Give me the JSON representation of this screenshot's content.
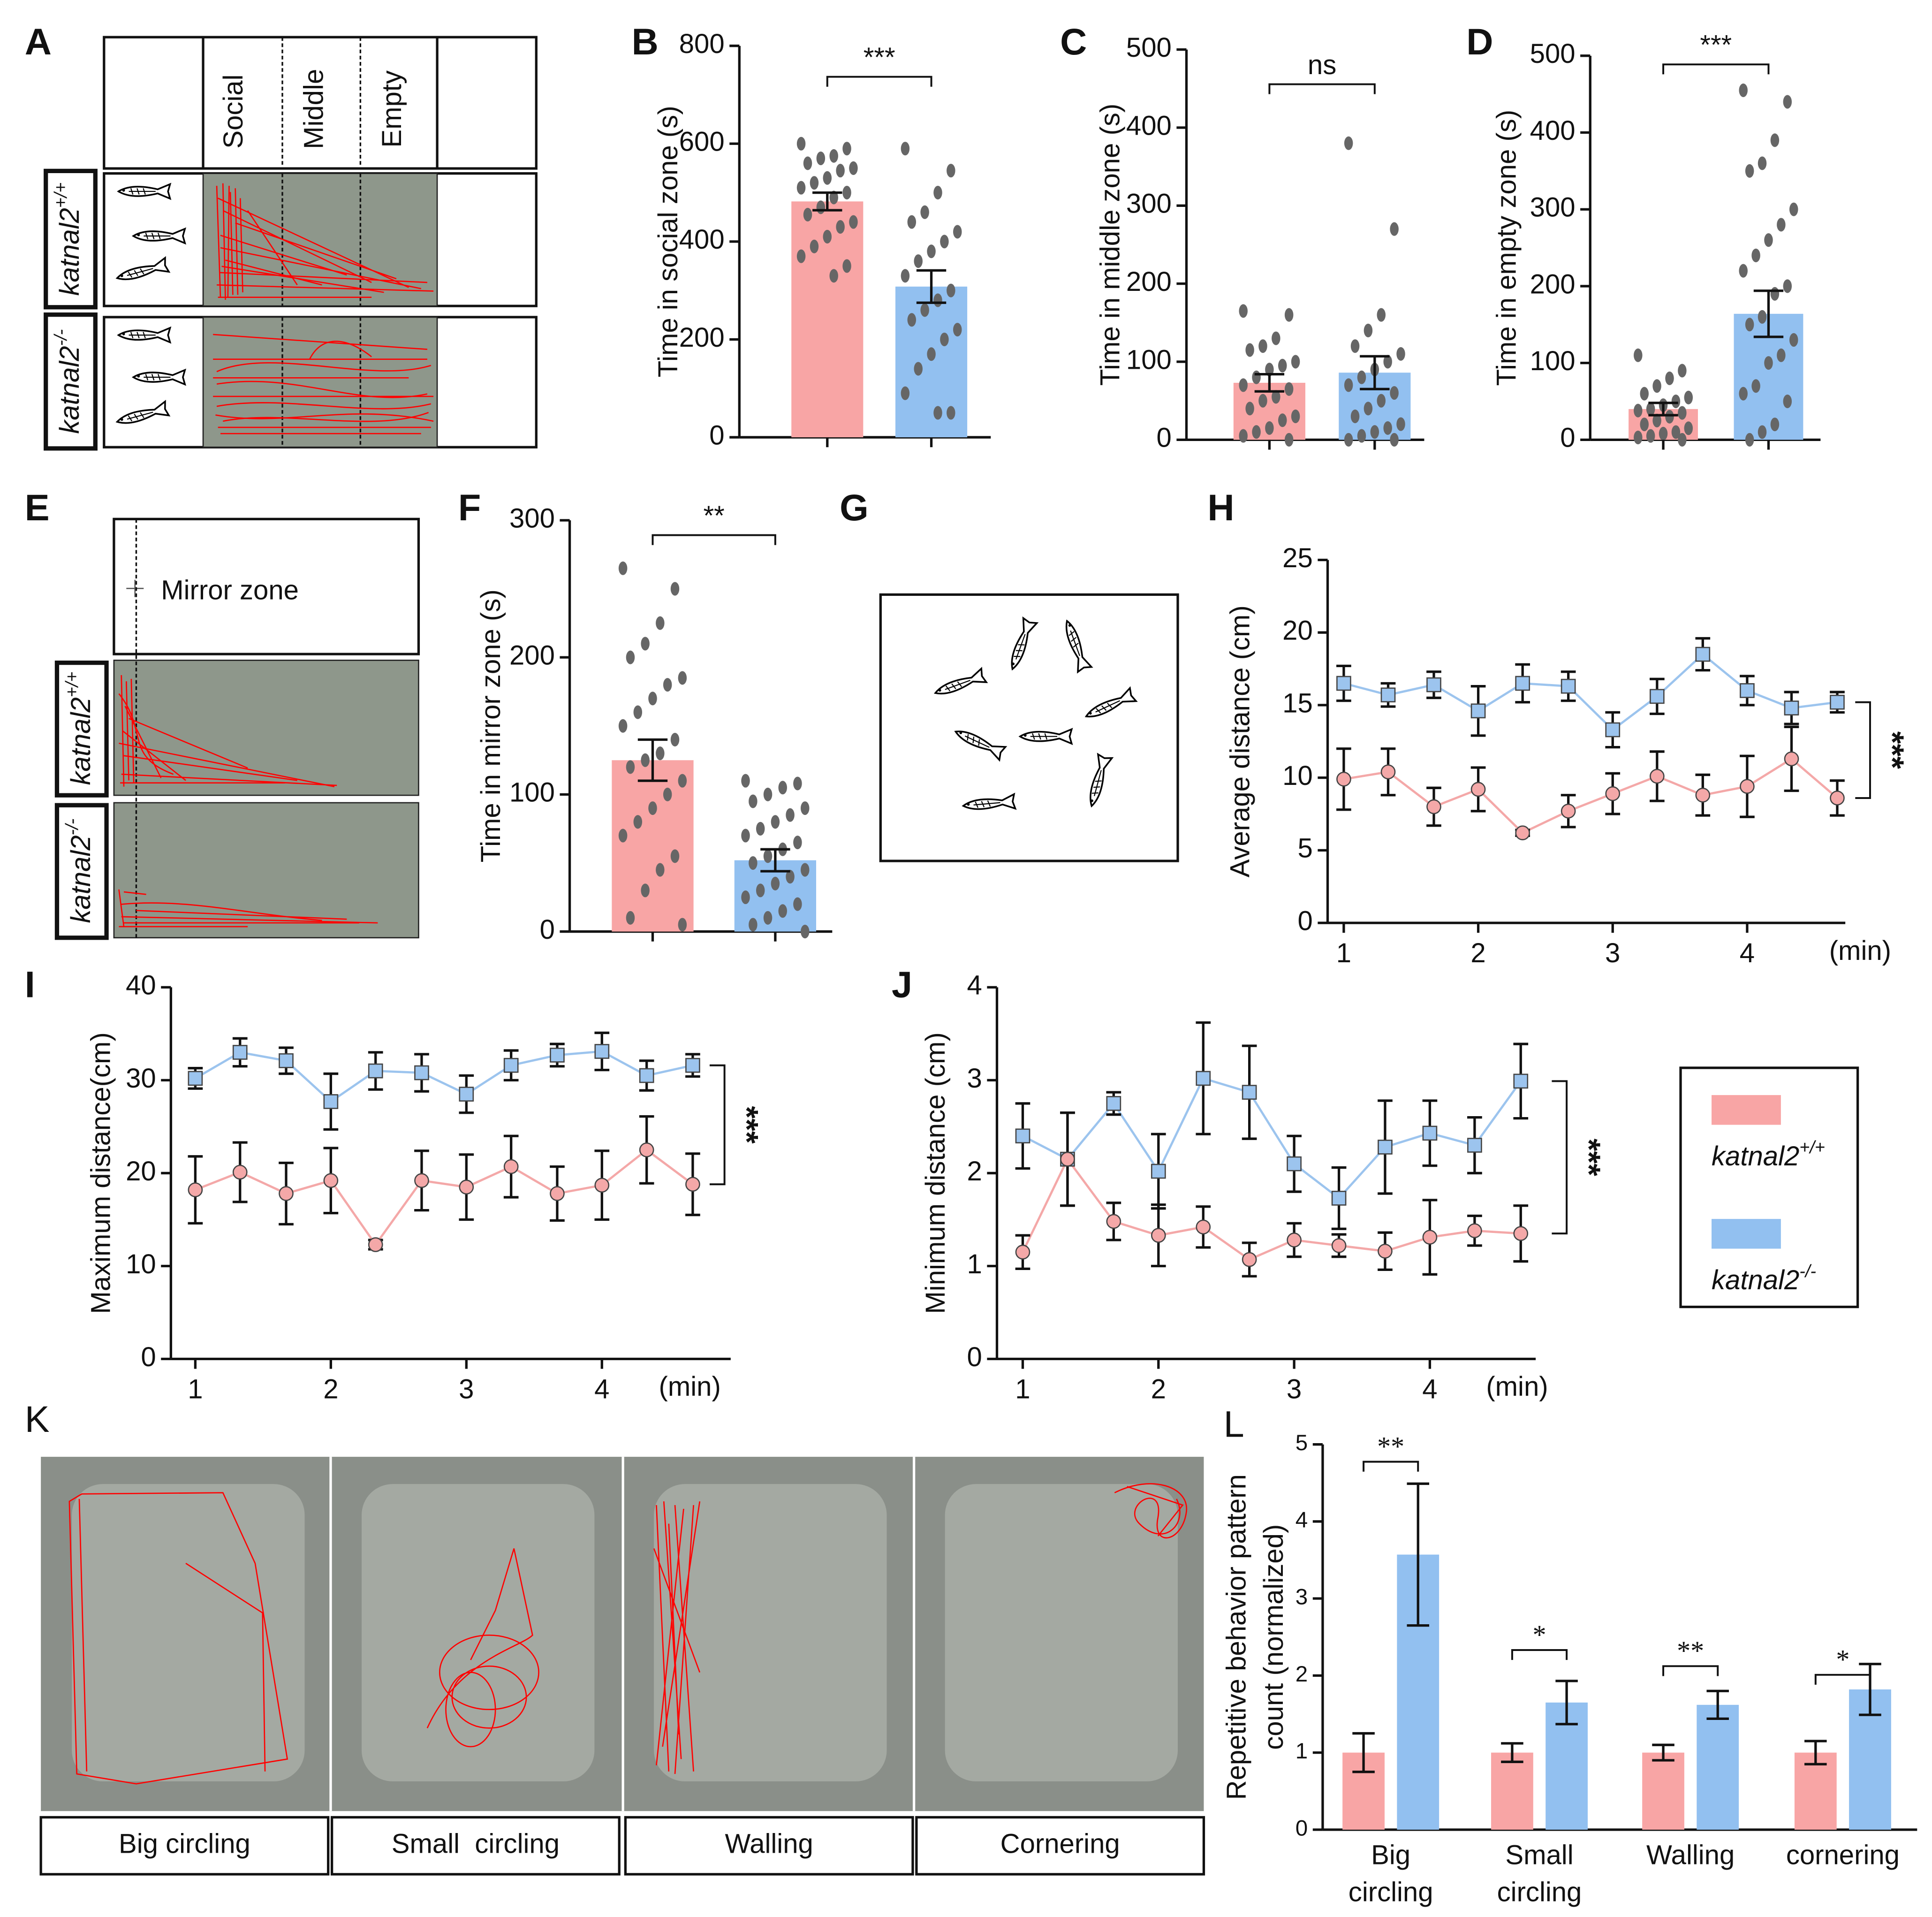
{
  "panel_labels": [
    "A",
    "B",
    "C",
    "D",
    "E",
    "F",
    "G",
    "H",
    "I",
    "J",
    "K",
    "L"
  ],
  "panel_a": {
    "zones": [
      "Social",
      "Middle",
      "Empty"
    ],
    "genotypes": [
      "katnal2+/+",
      "katnal2-/-"
    ]
  },
  "panel_e": {
    "zone": "Mirror zone",
    "genotypes": [
      "katnal2+/+",
      "katnal2-/-"
    ]
  },
  "panel_k": {
    "patterns": [
      "Big circling",
      "Small  circling",
      "Walling",
      "Cornering"
    ]
  },
  "chart_data": [
    {
      "type": "bar",
      "ylabel": "Time in social zone (s)",
      "ylim": [
        0,
        800
      ],
      "yticks": [
        0,
        200,
        400,
        600,
        800
      ],
      "values": [
        482,
        308
      ],
      "errors": [
        18,
        33
      ],
      "colors": [
        "#f8a5a5",
        "#92c0f0"
      ],
      "annotation": "***",
      "points": [
        [
          600,
          590,
          575,
          570,
          560,
          550,
          545,
          530,
          520,
          510,
          500,
          490,
          470,
          455,
          440,
          430,
          410,
          390,
          370,
          350,
          330
        ],
        [
          590,
          545,
          500,
          460,
          440,
          420,
          400,
          380,
          360,
          330,
          300,
          280,
          260,
          240,
          220,
          200,
          170,
          140,
          90,
          50,
          50
        ]
      ]
    },
    {
      "type": "bar",
      "ylabel": "Time in middle zone (s)",
      "ylim": [
        0,
        500
      ],
      "yticks": [
        0,
        100,
        200,
        300,
        400,
        500
      ],
      "values": [
        73,
        86
      ],
      "errors": [
        11,
        21
      ],
      "colors": [
        "#f8a5a5",
        "#92c0f0"
      ],
      "annotation": "ns",
      "points": [
        [
          165,
          160,
          130,
          120,
          115,
          100,
          95,
          90,
          80,
          70,
          65,
          55,
          50,
          40,
          30,
          25,
          15,
          10,
          5,
          0
        ],
        [
          380,
          270,
          160,
          140,
          120,
          110,
          100,
          90,
          80,
          70,
          60,
          50,
          40,
          30,
          20,
          15,
          10,
          5,
          0,
          0
        ]
      ]
    },
    {
      "type": "bar",
      "ylabel": "Time in empty zone (s)",
      "ylim": [
        0,
        500
      ],
      "yticks": [
        0,
        100,
        200,
        300,
        400,
        500
      ],
      "values": [
        40,
        164
      ],
      "errors": [
        8,
        30
      ],
      "colors": [
        "#f8a5a5",
        "#92c0f0"
      ],
      "annotation": "***",
      "points": [
        [
          110,
          90,
          80,
          70,
          60,
          55,
          50,
          45,
          40,
          38,
          35,
          30,
          25,
          20,
          15,
          10,
          8,
          5,
          3,
          0
        ],
        [
          455,
          440,
          390,
          360,
          350,
          300,
          280,
          260,
          240,
          220,
          200,
          190,
          160,
          150,
          130,
          110,
          100,
          70,
          60,
          50,
          20,
          10,
          0
        ]
      ]
    },
    {
      "type": "bar",
      "ylabel": "Time in mirror zone (s)",
      "ylim": [
        0,
        300
      ],
      "yticks": [
        0,
        100,
        200,
        300
      ],
      "values": [
        125,
        52
      ],
      "errors": [
        15,
        8
      ],
      "colors": [
        "#f8a5a5",
        "#92c0f0"
      ],
      "annotation": "**",
      "points": [
        [
          265,
          250,
          225,
          210,
          200,
          185,
          180,
          170,
          160,
          150,
          140,
          130,
          125,
          120,
          110,
          100,
          90,
          80,
          70,
          55,
          45,
          30,
          10,
          5
        ],
        [
          110,
          108,
          105,
          100,
          95,
          90,
          85,
          80,
          75,
          70,
          65,
          60,
          55,
          50,
          45,
          40,
          35,
          30,
          25,
          20,
          15,
          10,
          5,
          0
        ]
      ]
    },
    {
      "type": "line",
      "ylabel": "Average distance (cm)",
      "xlabel": "(min)",
      "annotation": "***",
      "xlim": [
        0.88,
        4.73
      ],
      "xticks": [
        1,
        2,
        3,
        4
      ],
      "ylim": [
        0,
        25
      ],
      "yticks": [
        0,
        5,
        10,
        15,
        20,
        25
      ],
      "x": [
        1,
        1.33,
        1.67,
        2,
        2.33,
        2.67,
        3,
        3.33,
        3.67,
        4,
        4.33,
        4.67
      ],
      "series": [
        {
          "color": "#9cc4ee",
          "marker": "square",
          "values": [
            16.5,
            15.7,
            16.4,
            14.6,
            16.5,
            16.3,
            13.3,
            15.6,
            18.5,
            16.0,
            14.8,
            15.2
          ],
          "errors": [
            1.2,
            0.8,
            0.9,
            1.7,
            1.3,
            1.0,
            1.2,
            1.2,
            1.1,
            1.0,
            1.1,
            0.7
          ]
        },
        {
          "color": "#f4a8a8",
          "marker": "circle",
          "values": [
            9.9,
            10.4,
            8.0,
            9.2,
            6.2,
            7.7,
            8.9,
            10.1,
            8.8,
            9.4,
            11.3,
            8.6
          ],
          "errors": [
            2.1,
            1.6,
            1.3,
            1.5,
            0.2,
            1.1,
            1.4,
            1.7,
            1.4,
            2.1,
            2.2,
            1.2
          ]
        }
      ]
    },
    {
      "type": "line",
      "ylabel": "Maximum distance(cm)",
      "xlabel": "(min)",
      "annotation": "***",
      "xlim": [
        0.82,
        4.95
      ],
      "xticks": [
        1,
        2,
        3,
        4
      ],
      "ylim": [
        0,
        40
      ],
      "yticks": [
        0,
        10,
        20,
        30,
        40
      ],
      "x": [
        1,
        1.33,
        1.67,
        2,
        2.33,
        2.67,
        3,
        3.33,
        3.67,
        4,
        4.33,
        4.67
      ],
      "series": [
        {
          "color": "#9cc4ee",
          "marker": "square",
          "values": [
            30.2,
            33.0,
            32.1,
            27.7,
            31.0,
            30.8,
            28.5,
            31.6,
            32.7,
            33.1,
            30.5,
            31.6
          ],
          "errors": [
            1.1,
            1.5,
            1.4,
            3.0,
            2.0,
            2.0,
            2.0,
            1.6,
            1.2,
            2.0,
            1.6,
            1.2
          ]
        },
        {
          "color": "#f4a8a8",
          "marker": "circle",
          "values": [
            18.2,
            20.1,
            17.8,
            19.2,
            12.3,
            19.2,
            18.5,
            20.7,
            17.8,
            18.7,
            22.5,
            18.8
          ],
          "errors": [
            3.6,
            3.2,
            3.3,
            3.5,
            0.5,
            3.2,
            3.5,
            3.3,
            2.9,
            3.7,
            3.6,
            3.3
          ]
        }
      ]
    },
    {
      "type": "line",
      "ylabel": "Minimum distance (cm)",
      "xlabel": "(min)",
      "annotation": "***",
      "xlim": [
        0.81,
        4.78
      ],
      "xticks": [
        1,
        2,
        3,
        4
      ],
      "ylim": [
        0,
        4
      ],
      "yticks": [
        0,
        1,
        2,
        3,
        4
      ],
      "x": [
        1,
        1.33,
        1.67,
        2,
        2.33,
        2.67,
        3,
        3.33,
        3.67,
        4,
        4.33,
        4.67
      ],
      "series": [
        {
          "name": "katnal2-/-",
          "color": "#9cc4ee",
          "marker": "square",
          "values": [
            2.4,
            2.15,
            2.75,
            2.02,
            3.02,
            2.87,
            2.1,
            1.73,
            2.28,
            2.43,
            2.3,
            2.99
          ],
          "errors": [
            0.35,
            0.5,
            0.12,
            0.4,
            0.6,
            0.5,
            0.3,
            0.33,
            0.5,
            0.35,
            0.3,
            0.4
          ]
        },
        {
          "name": "katnal2+/+",
          "color": "#f4a8a8",
          "marker": "circle",
          "values": [
            1.15,
            2.15,
            1.48,
            1.33,
            1.42,
            1.07,
            1.28,
            1.22,
            1.16,
            1.31,
            1.38,
            1.35
          ],
          "errors": [
            0.18,
            0.5,
            0.2,
            0.33,
            0.22,
            0.18,
            0.18,
            0.12,
            0.2,
            0.4,
            0.16,
            0.3
          ]
        }
      ]
    },
    {
      "type": "bar",
      "ylabel": [
        "Repetitive behavior pattern",
        "count (normalized)"
      ],
      "ylim": [
        0,
        5
      ],
      "yticks": [
        0,
        1,
        2,
        3,
        4,
        5
      ],
      "categories": [
        [
          "Big",
          "circling"
        ],
        [
          "Small",
          "circling"
        ],
        [
          "Walling"
        ],
        [
          "cornering"
        ]
      ],
      "annotations": [
        "**",
        "*",
        "**",
        "*"
      ],
      "series": [
        {
          "color": "#f8a5a5",
          "values": [
            1,
            1,
            1,
            1
          ],
          "errors": [
            0.25,
            0.12,
            0.1,
            0.15
          ]
        },
        {
          "color": "#92c0f0",
          "values": [
            3.57,
            1.65,
            1.62,
            1.82
          ],
          "errors": [
            0.92,
            0.28,
            0.18,
            0.33
          ]
        }
      ]
    }
  ]
}
